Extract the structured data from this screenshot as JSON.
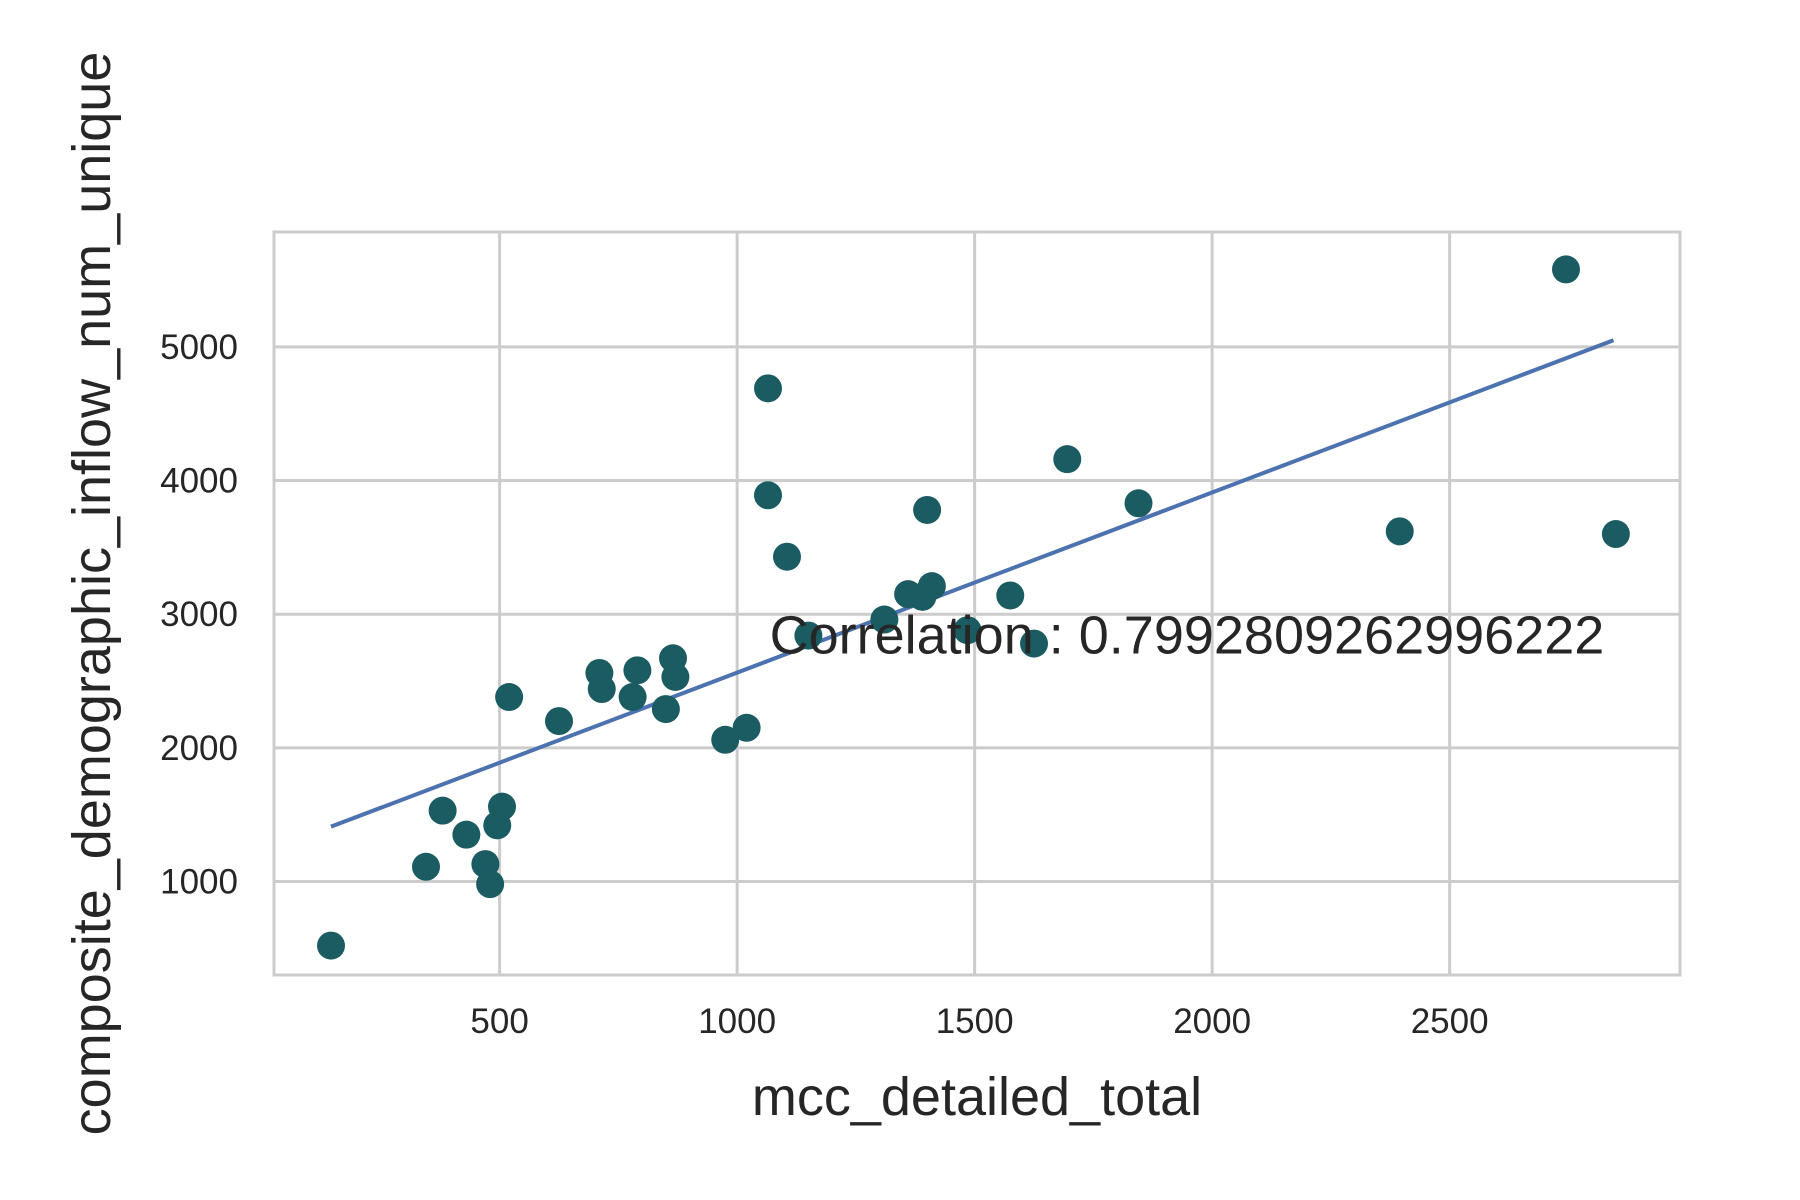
{
  "chart_data": {
    "type": "scatter",
    "xlabel": "mcc_detailed_total",
    "ylabel": "composite_demographic_inflow_num_unique",
    "xlim": [
      25,
      2985
    ],
    "ylim": [
      300,
      5860
    ],
    "x_ticks": [
      500,
      1000,
      1500,
      2000,
      2500
    ],
    "y_ticks": [
      1000,
      2000,
      3000,
      4000,
      5000
    ],
    "grid": true,
    "annotation": {
      "text": "Correlation : 0.7992809262996222",
      "x": 1100,
      "y": 2840
    },
    "point_color": "#1b5c63",
    "line_color": "#4c72b0",
    "trend_line": {
      "x": [
        145,
        2845
      ],
      "y": [
        1410,
        5050
      ]
    },
    "points": [
      {
        "x": 145,
        "y": 520
      },
      {
        "x": 345,
        "y": 1110
      },
      {
        "x": 380,
        "y": 1530
      },
      {
        "x": 430,
        "y": 1350
      },
      {
        "x": 470,
        "y": 1130
      },
      {
        "x": 480,
        "y": 980
      },
      {
        "x": 495,
        "y": 1420
      },
      {
        "x": 505,
        "y": 1560
      },
      {
        "x": 520,
        "y": 2380
      },
      {
        "x": 625,
        "y": 2200
      },
      {
        "x": 710,
        "y": 2560
      },
      {
        "x": 715,
        "y": 2440
      },
      {
        "x": 780,
        "y": 2380
      },
      {
        "x": 790,
        "y": 2580
      },
      {
        "x": 850,
        "y": 2290
      },
      {
        "x": 865,
        "y": 2670
      },
      {
        "x": 870,
        "y": 2530
      },
      {
        "x": 975,
        "y": 2060
      },
      {
        "x": 1020,
        "y": 2150
      },
      {
        "x": 1065,
        "y": 4690
      },
      {
        "x": 1065,
        "y": 3890
      },
      {
        "x": 1105,
        "y": 3430
      },
      {
        "x": 1150,
        "y": 2840
      },
      {
        "x": 1310,
        "y": 2960
      },
      {
        "x": 1360,
        "y": 3150
      },
      {
        "x": 1390,
        "y": 3130
      },
      {
        "x": 1400,
        "y": 3780
      },
      {
        "x": 1410,
        "y": 3210
      },
      {
        "x": 1485,
        "y": 2880
      },
      {
        "x": 1575,
        "y": 3140
      },
      {
        "x": 1625,
        "y": 2780
      },
      {
        "x": 1695,
        "y": 4160
      },
      {
        "x": 1845,
        "y": 3830
      },
      {
        "x": 2395,
        "y": 3620
      },
      {
        "x": 2745,
        "y": 5580
      },
      {
        "x": 2850,
        "y": 3600
      }
    ]
  }
}
